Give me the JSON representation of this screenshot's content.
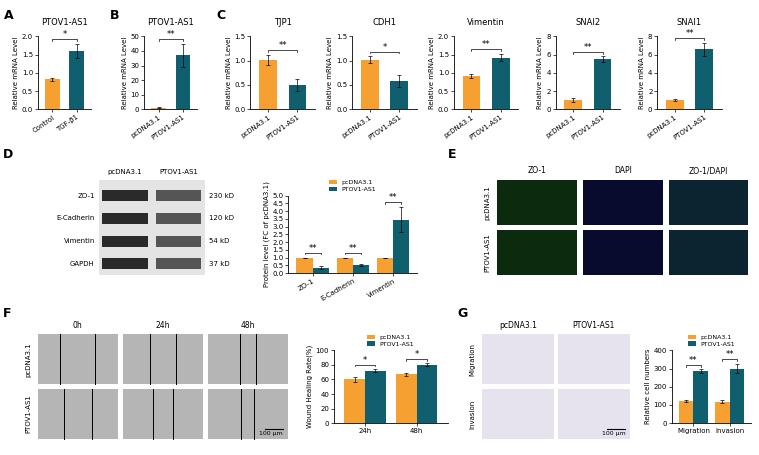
{
  "chart_data": [
    {
      "panel": "A",
      "type": "bar",
      "title": "PTOV1-AS1",
      "y_label": "Relative mRNA Level",
      "categories": [
        "Control",
        "TGF-β1"
      ],
      "values": [
        0.82,
        1.6
      ],
      "errors": [
        0.05,
        0.2
      ],
      "colors": [
        "#f5a031",
        "#0f5f6e"
      ],
      "ylim": [
        0.0,
        2.0
      ],
      "yticks": [
        0.0,
        0.5,
        1.0,
        1.5,
        2.0
      ],
      "annotations": [
        "*"
      ]
    },
    {
      "panel": "B",
      "type": "bar",
      "title": "PTOV1-AS1",
      "y_label": "Relative mRNA Level",
      "categories": [
        "pcDNA3.1",
        "PTOV1-AS1"
      ],
      "values": [
        1.0,
        37
      ],
      "errors": [
        0.3,
        8
      ],
      "colors": [
        "#f5a031",
        "#0f5f6e"
      ],
      "ylim": [
        0,
        50
      ],
      "yticks": [
        0,
        10,
        20,
        30,
        40,
        50
      ],
      "annotations": [
        "**"
      ]
    },
    {
      "panel": "C",
      "type": "bar",
      "title": "TJP1",
      "y_label": "Relative mRNA Level",
      "categories": [
        "pcDNA3.1",
        "PTOV1-AS1"
      ],
      "values": [
        1.02,
        0.5
      ],
      "errors": [
        0.1,
        0.12
      ],
      "colors": [
        "#f5a031",
        "#0f5f6e"
      ],
      "ylim": [
        0.0,
        1.5
      ],
      "yticks": [
        0.0,
        0.5,
        1.0,
        1.5
      ],
      "annotations": [
        "**"
      ]
    },
    {
      "type": "bar",
      "title": "CDH1",
      "y_label": "Relative mRNA Level",
      "categories": [
        "pcDNA3.1",
        "PTOV1-AS1"
      ],
      "values": [
        1.02,
        0.58
      ],
      "errors": [
        0.07,
        0.13
      ],
      "colors": [
        "#f5a031",
        "#0f5f6e"
      ],
      "ylim": [
        0.0,
        1.5
      ],
      "yticks": [
        0.0,
        0.5,
        1.0,
        1.5
      ],
      "annotations": [
        "*"
      ]
    },
    {
      "type": "bar",
      "title": "Vimentin",
      "y_label": "Relative mRNA Level",
      "categories": [
        "pcDNA3.1",
        "PTOV1-AS1"
      ],
      "values": [
        0.92,
        1.42
      ],
      "errors": [
        0.06,
        0.1
      ],
      "colors": [
        "#f5a031",
        "#0f5f6e"
      ],
      "ylim": [
        0.0,
        2.0
      ],
      "yticks": [
        0.0,
        0.5,
        1.0,
        1.5,
        2.0
      ],
      "annotations": [
        "**"
      ]
    },
    {
      "type": "bar",
      "title": "SNAI2",
      "y_label": "Relative mRNA Level",
      "categories": [
        "pcDNA3.1",
        "PTOV1-AS1"
      ],
      "values": [
        1.0,
        5.5
      ],
      "errors": [
        0.2,
        0.3
      ],
      "colors": [
        "#f5a031",
        "#0f5f6e"
      ],
      "ylim": [
        0,
        8
      ],
      "yticks": [
        0,
        2,
        4,
        6,
        8
      ],
      "annotations": [
        "**"
      ]
    },
    {
      "type": "bar",
      "title": "SNAI1",
      "y_label": "Relative mRNA Level",
      "categories": [
        "pcDNA3.1",
        "PTOV1-AS1"
      ],
      "values": [
        1.0,
        6.6
      ],
      "errors": [
        0.1,
        0.7
      ],
      "colors": [
        "#f5a031",
        "#0f5f6e"
      ],
      "ylim": [
        0,
        8
      ],
      "yticks": [
        0,
        2,
        4,
        6,
        8
      ],
      "annotations": [
        "**"
      ]
    },
    {
      "type": "bar",
      "y_label": "Protein level (FC of pcDNA3.1)",
      "categories": [
        "ZO-1",
        "E-Cadherin",
        "Vimentin"
      ],
      "series": [
        {
          "name": "pcDNA3.1",
          "color": "#f5a031",
          "values": [
            1.0,
            1.0,
            1.0
          ],
          "errors": [
            0,
            0,
            0
          ]
        },
        {
          "name": "PTOV1-AS1",
          "color": "#0f5f6e",
          "values": [
            0.35,
            0.5,
            3.45
          ],
          "errors": [
            0.08,
            0.05,
            0.8
          ]
        }
      ],
      "ylim": [
        0.0,
        5.0
      ],
      "yticks": [
        0.0,
        0.5,
        1.0,
        1.5,
        2.0,
        2.5,
        3.0,
        3.5,
        4.0,
        4.5,
        5.0
      ],
      "annotations": [
        "**",
        "**",
        "**"
      ],
      "legend": "top"
    },
    {
      "type": "bar",
      "y_label": "Wound Healing Rate(%)",
      "categories": [
        "24h",
        "48h"
      ],
      "series": [
        {
          "name": "pcDNA3.1",
          "color": "#f5a031",
          "values": [
            60,
            67
          ],
          "errors": [
            3,
            2
          ]
        },
        {
          "name": "PTOV1-AS1",
          "color": "#0f5f6e",
          "values": [
            72,
            80
          ],
          "errors": [
            2,
            2
          ]
        }
      ],
      "ylim": [
        0,
        100
      ],
      "yticks": [
        0,
        20,
        40,
        60,
        80,
        100
      ],
      "annotations": [
        "*",
        "*"
      ],
      "legend": "top"
    },
    {
      "type": "bar",
      "y_label": "Relative cell numbers",
      "categories": [
        "Migration",
        "Invasion"
      ],
      "series": [
        {
          "name": "pcDNA3.1",
          "color": "#f5a031",
          "values": [
            120,
            118
          ],
          "errors": [
            5,
            8
          ]
        },
        {
          "name": "PTOV1-AS1",
          "color": "#0f5f6e",
          "values": [
            285,
            300
          ],
          "errors": [
            10,
            25
          ]
        }
      ],
      "ylim": [
        0,
        400
      ],
      "yticks": [
        0,
        100,
        200,
        300,
        400
      ],
      "annotations": [
        "**",
        "**"
      ],
      "legend": "top"
    }
  ],
  "blot": {
    "panel": "D",
    "columns": [
      "pcDNA3.1",
      "PTOV1-AS1"
    ],
    "rows": [
      {
        "protein": "ZO-1",
        "size": "230 kD"
      },
      {
        "protein": "E-Cadherin",
        "size": "120 kD"
      },
      {
        "protein": "Vimentin",
        "size": "54 kD"
      },
      {
        "protein": "GAPDH",
        "size": "37 kD"
      }
    ]
  },
  "image_grids": [
    {
      "panel": "E",
      "columns": [
        "ZO-1",
        "DAPI",
        "ZO-1/DAPI"
      ],
      "rows": [
        "pcDNA3.1",
        "PTOV1-AS1"
      ]
    },
    {
      "panel": "F",
      "columns": [
        "0h",
        "24h",
        "48h"
      ],
      "rows": [
        "pcDNA3.1",
        "PTOV1-AS1"
      ],
      "scale_bar": "100 μm"
    },
    {
      "panel": "G",
      "columns": [
        "pcDNA3.1",
        "PTOV1-AS1"
      ],
      "rows": [
        "Migration",
        "Invasion"
      ],
      "scale_bar": "100 μm"
    }
  ]
}
